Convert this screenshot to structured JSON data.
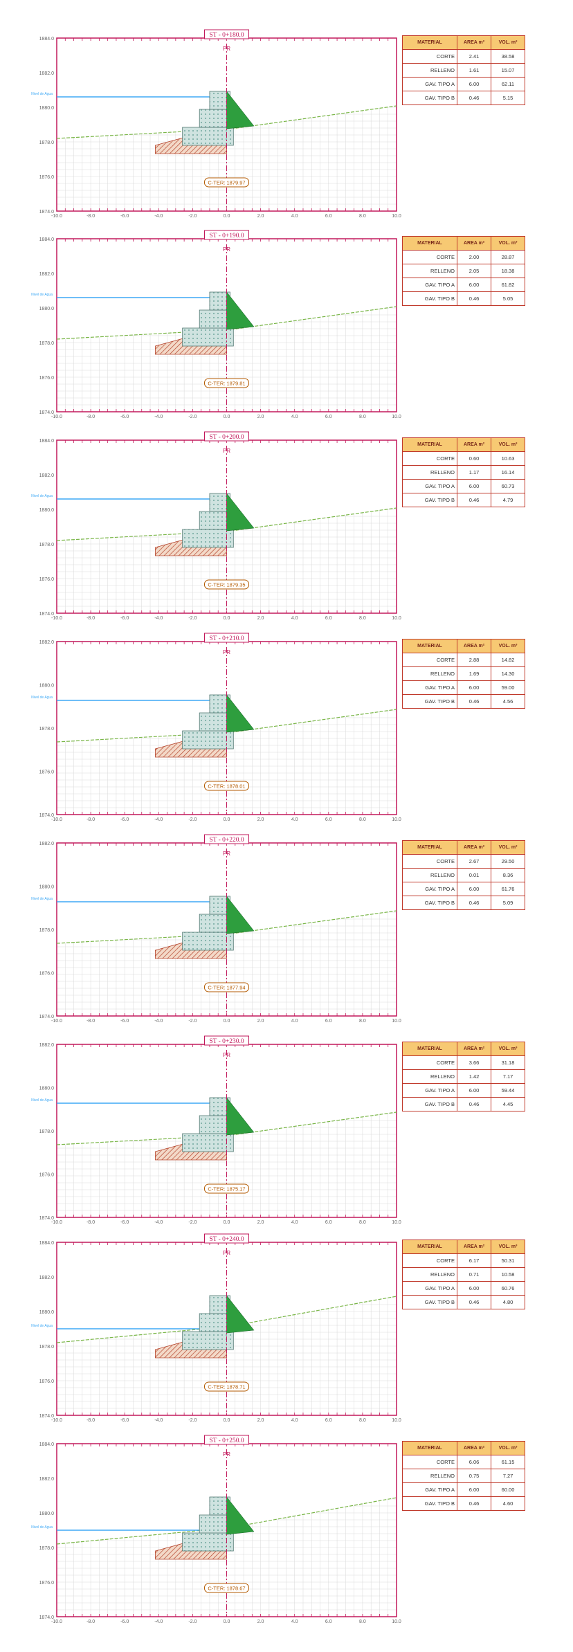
{
  "table_headers": [
    "MATERIAL",
    "AREA m²",
    "VOL. m³"
  ],
  "material_names": [
    "CORTE",
    "RELLENO",
    "GAV. TIPO A",
    "GAV. TIPO B"
  ],
  "axis_label": "PR",
  "water_label": "Nivel de Agua",
  "x_ticks": [
    "-10.0",
    "-8.0",
    "-6.0",
    "-4.0",
    "-2.0",
    "0.0",
    "2.0",
    "4.0",
    "6.0",
    "8.0",
    "10.0"
  ],
  "colors": {
    "frame": "#c2185b",
    "grid": "#d9d9d9",
    "water": "#3fa9f5",
    "terrain": "#7ab648",
    "cut_fill": "#2e9e3e",
    "gabion_fill": "#cfe3e0",
    "hatch": "#b5462e",
    "table_header": "#f7c973",
    "label_text": "#b35a00"
  },
  "sections": [
    {
      "title": "ST - 0+180.0",
      "elev_label": "C-TER: 1879.97",
      "y_ticks": [
        "1884.0",
        "1882.0",
        "1880.0",
        "1878.0",
        "1876.0",
        "1874.0"
      ],
      "rows": [
        {
          "name": "CORTE",
          "area": "2.41",
          "vol": "38.58"
        },
        {
          "name": "RELLENO",
          "area": "1.61",
          "vol": "15.07"
        },
        {
          "name": "GAV. TIPO A",
          "area": "6.00",
          "vol": "62.11"
        },
        {
          "name": "GAV. TIPO B",
          "area": "0.46",
          "vol": "5.15"
        }
      ]
    },
    {
      "title": "ST - 0+190.0",
      "elev_label": "C-TER: 1879.81",
      "y_ticks": [
        "1884.0",
        "1882.0",
        "1880.0",
        "1878.0",
        "1876.0",
        "1874.0"
      ],
      "rows": [
        {
          "name": "CORTE",
          "area": "2.00",
          "vol": "28.87"
        },
        {
          "name": "RELLENO",
          "area": "2.05",
          "vol": "18.38"
        },
        {
          "name": "GAV. TIPO A",
          "area": "6.00",
          "vol": "61.82"
        },
        {
          "name": "GAV. TIPO B",
          "area": "0.46",
          "vol": "5.05"
        }
      ]
    },
    {
      "title": "ST - 0+200.0",
      "elev_label": "C-TER: 1879.35",
      "y_ticks": [
        "1884.0",
        "1882.0",
        "1880.0",
        "1878.0",
        "1876.0",
        "1874.0"
      ],
      "rows": [
        {
          "name": "CORTE",
          "area": "0.60",
          "vol": "10.63"
        },
        {
          "name": "RELLENO",
          "area": "1.17",
          "vol": "16.14"
        },
        {
          "name": "GAV. TIPO A",
          "area": "6.00",
          "vol": "60.73"
        },
        {
          "name": "GAV. TIPO B",
          "area": "0.46",
          "vol": "4.79"
        }
      ]
    },
    {
      "title": "ST - 0+210.0",
      "elev_label": "C-TER: 1878.01",
      "y_ticks": [
        "1882.0",
        "1880.0",
        "1878.0",
        "1876.0",
        "1874.0"
      ],
      "rows": [
        {
          "name": "CORTE",
          "area": "2.88",
          "vol": "14.82"
        },
        {
          "name": "RELLENO",
          "area": "1.69",
          "vol": "14.30"
        },
        {
          "name": "GAV. TIPO A",
          "area": "6.00",
          "vol": "59.00"
        },
        {
          "name": "GAV. TIPO B",
          "area": "0.46",
          "vol": "4.56"
        }
      ]
    },
    {
      "title": "ST - 0+220.0",
      "elev_label": "C-TER: 1877.94",
      "y_ticks": [
        "1882.0",
        "1880.0",
        "1878.0",
        "1876.0",
        "1874.0"
      ],
      "rows": [
        {
          "name": "CORTE",
          "area": "2.67",
          "vol": "29.50"
        },
        {
          "name": "RELLENO",
          "area": "0.01",
          "vol": "8.36"
        },
        {
          "name": "GAV. TIPO A",
          "area": "6.00",
          "vol": "61.76"
        },
        {
          "name": "GAV. TIPO B",
          "area": "0.46",
          "vol": "5.09"
        }
      ]
    },
    {
      "title": "ST - 0+230.0",
      "elev_label": "C-TER: 1875.17",
      "y_ticks": [
        "1882.0",
        "1880.0",
        "1878.0",
        "1876.0",
        "1874.0"
      ],
      "rows": [
        {
          "name": "CORTE",
          "area": "3.66",
          "vol": "31.18"
        },
        {
          "name": "RELLENO",
          "area": "1.42",
          "vol": "7.17"
        },
        {
          "name": "GAV. TIPO A",
          "area": "6.00",
          "vol": "59.44"
        },
        {
          "name": "GAV. TIPO B",
          "area": "0.46",
          "vol": "4.45"
        }
      ]
    },
    {
      "title": "ST - 0+240.0",
      "elev_label": "C-TER: 1878.71",
      "y_ticks": [
        "1884.0",
        "1882.0",
        "1880.0",
        "1878.0",
        "1876.0",
        "1874.0"
      ],
      "rows": [
        {
          "name": "CORTE",
          "area": "6.17",
          "vol": "50.31"
        },
        {
          "name": "RELLENO",
          "area": "0.71",
          "vol": "10.58"
        },
        {
          "name": "GAV. TIPO A",
          "area": "6.00",
          "vol": "60.76"
        },
        {
          "name": "GAV. TIPO B",
          "area": "0.46",
          "vol": "4.80"
        }
      ]
    },
    {
      "title": "ST - 0+250.0",
      "elev_label": "C-TER: 1878.67",
      "y_ticks": [
        "1884.0",
        "1882.0",
        "1880.0",
        "1878.0",
        "1876.0",
        "1874.0"
      ],
      "rows": [
        {
          "name": "CORTE",
          "area": "6.06",
          "vol": "61.15"
        },
        {
          "name": "RELLENO",
          "area": "0.75",
          "vol": "7.27"
        },
        {
          "name": "GAV. TIPO A",
          "area": "6.00",
          "vol": "60.00"
        },
        {
          "name": "GAV. TIPO B",
          "area": "0.46",
          "vol": "4.60"
        }
      ]
    }
  ]
}
